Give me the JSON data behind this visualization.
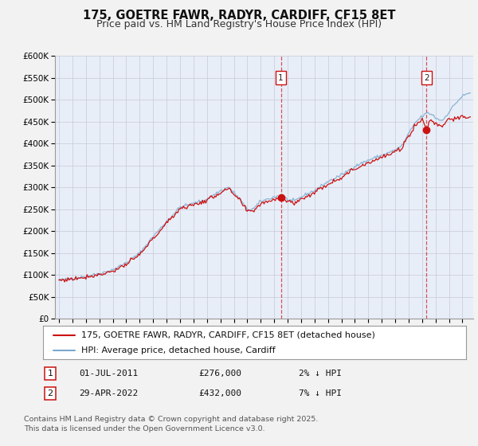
{
  "title": "175, GOETRE FAWR, RADYR, CARDIFF, CF15 8ET",
  "subtitle": "Price paid vs. HM Land Registry's House Price Index (HPI)",
  "ylim": [
    0,
    600000
  ],
  "yticks": [
    0,
    50000,
    100000,
    150000,
    200000,
    250000,
    300000,
    350000,
    400000,
    450000,
    500000,
    550000,
    600000
  ],
  "xlim_start": 1994.7,
  "xlim_end": 2025.8,
  "bg_color": "#e8eef7",
  "fig_bg_color": "#f2f2f2",
  "grid_color": "#c8c8d8",
  "hpi_color": "#7aaad0",
  "price_color": "#cc1111",
  "marker1_date": 2011.5,
  "marker1_price": 276000,
  "marker1_label": "01-JUL-2011",
  "marker1_amount": "£276,000",
  "marker1_note": "2% ↓ HPI",
  "marker2_date": 2022.33,
  "marker2_price": 432000,
  "marker2_label": "29-APR-2022",
  "marker2_amount": "£432,000",
  "marker2_note": "7% ↓ HPI",
  "legend_label_price": "175, GOETRE FAWR, RADYR, CARDIFF, CF15 8ET (detached house)",
  "legend_label_hpi": "HPI: Average price, detached house, Cardiff",
  "footnote": "Contains HM Land Registry data © Crown copyright and database right 2025.\nThis data is licensed under the Open Government Licence v3.0.",
  "title_fontsize": 10.5,
  "subtitle_fontsize": 9,
  "tick_fontsize": 7.5,
  "legend_fontsize": 8,
  "annotation_fontsize": 8
}
